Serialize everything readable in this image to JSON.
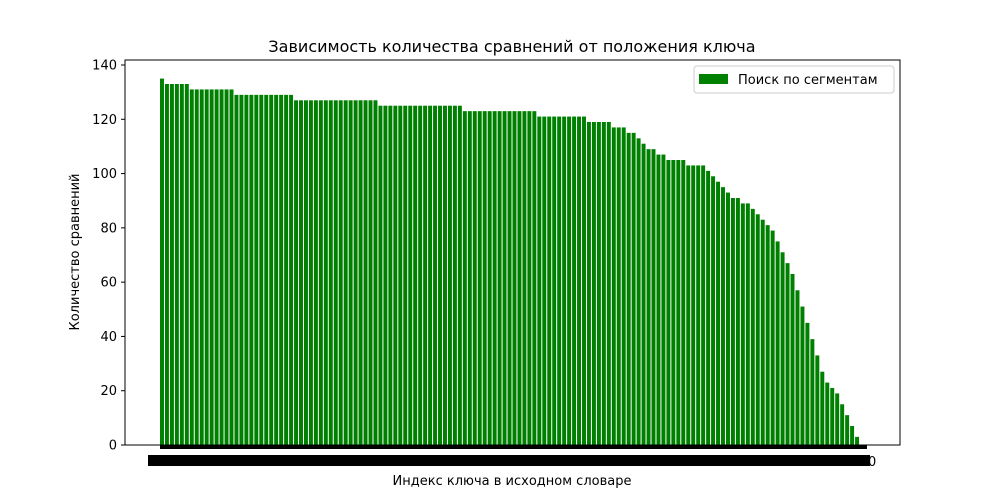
{
  "chart_data": {
    "type": "bar",
    "title": "Зависимость количества сравнений от положения ключа",
    "xlabel": "Индекс ключа в исходном словаре",
    "ylabel": "Количество сравнений",
    "ylim": [
      0,
      140
    ],
    "yticks": [
      0,
      20,
      40,
      60,
      80,
      100,
      120,
      140
    ],
    "x_tick_label_last": "0",
    "grid": false,
    "legend": {
      "placement": "top-right"
    },
    "bar_color": "#008000",
    "series": [
      {
        "name": "Поиск по сегментам",
        "values": [
          135,
          133,
          133,
          133,
          133,
          133,
          131,
          131,
          131,
          131,
          131,
          131,
          131,
          131,
          131,
          129,
          129,
          129,
          129,
          129,
          129,
          129,
          129,
          129,
          129,
          129,
          129,
          127,
          127,
          127,
          127,
          127,
          127,
          127,
          127,
          127,
          127,
          127,
          127,
          127,
          127,
          127,
          127,
          127,
          125,
          125,
          125,
          125,
          125,
          125,
          125,
          125,
          125,
          125,
          125,
          125,
          125,
          125,
          125,
          125,
          125,
          123,
          123,
          123,
          123,
          123,
          123,
          123,
          123,
          123,
          123,
          123,
          123,
          123,
          123,
          123,
          121,
          121,
          121,
          121,
          121,
          121,
          121,
          121,
          121,
          121,
          119,
          119,
          119,
          119,
          119,
          117,
          117,
          117,
          115,
          115,
          113,
          111,
          109,
          109,
          107,
          107,
          105,
          105,
          105,
          105,
          103,
          103,
          103,
          103,
          101,
          99,
          97,
          95,
          93,
          91,
          91,
          89,
          89,
          87,
          85,
          83,
          81,
          79,
          75,
          71,
          67,
          63,
          57,
          51,
          45,
          39,
          33,
          27,
          23,
          21,
          19,
          15,
          11,
          7,
          3,
          0
        ]
      }
    ]
  }
}
